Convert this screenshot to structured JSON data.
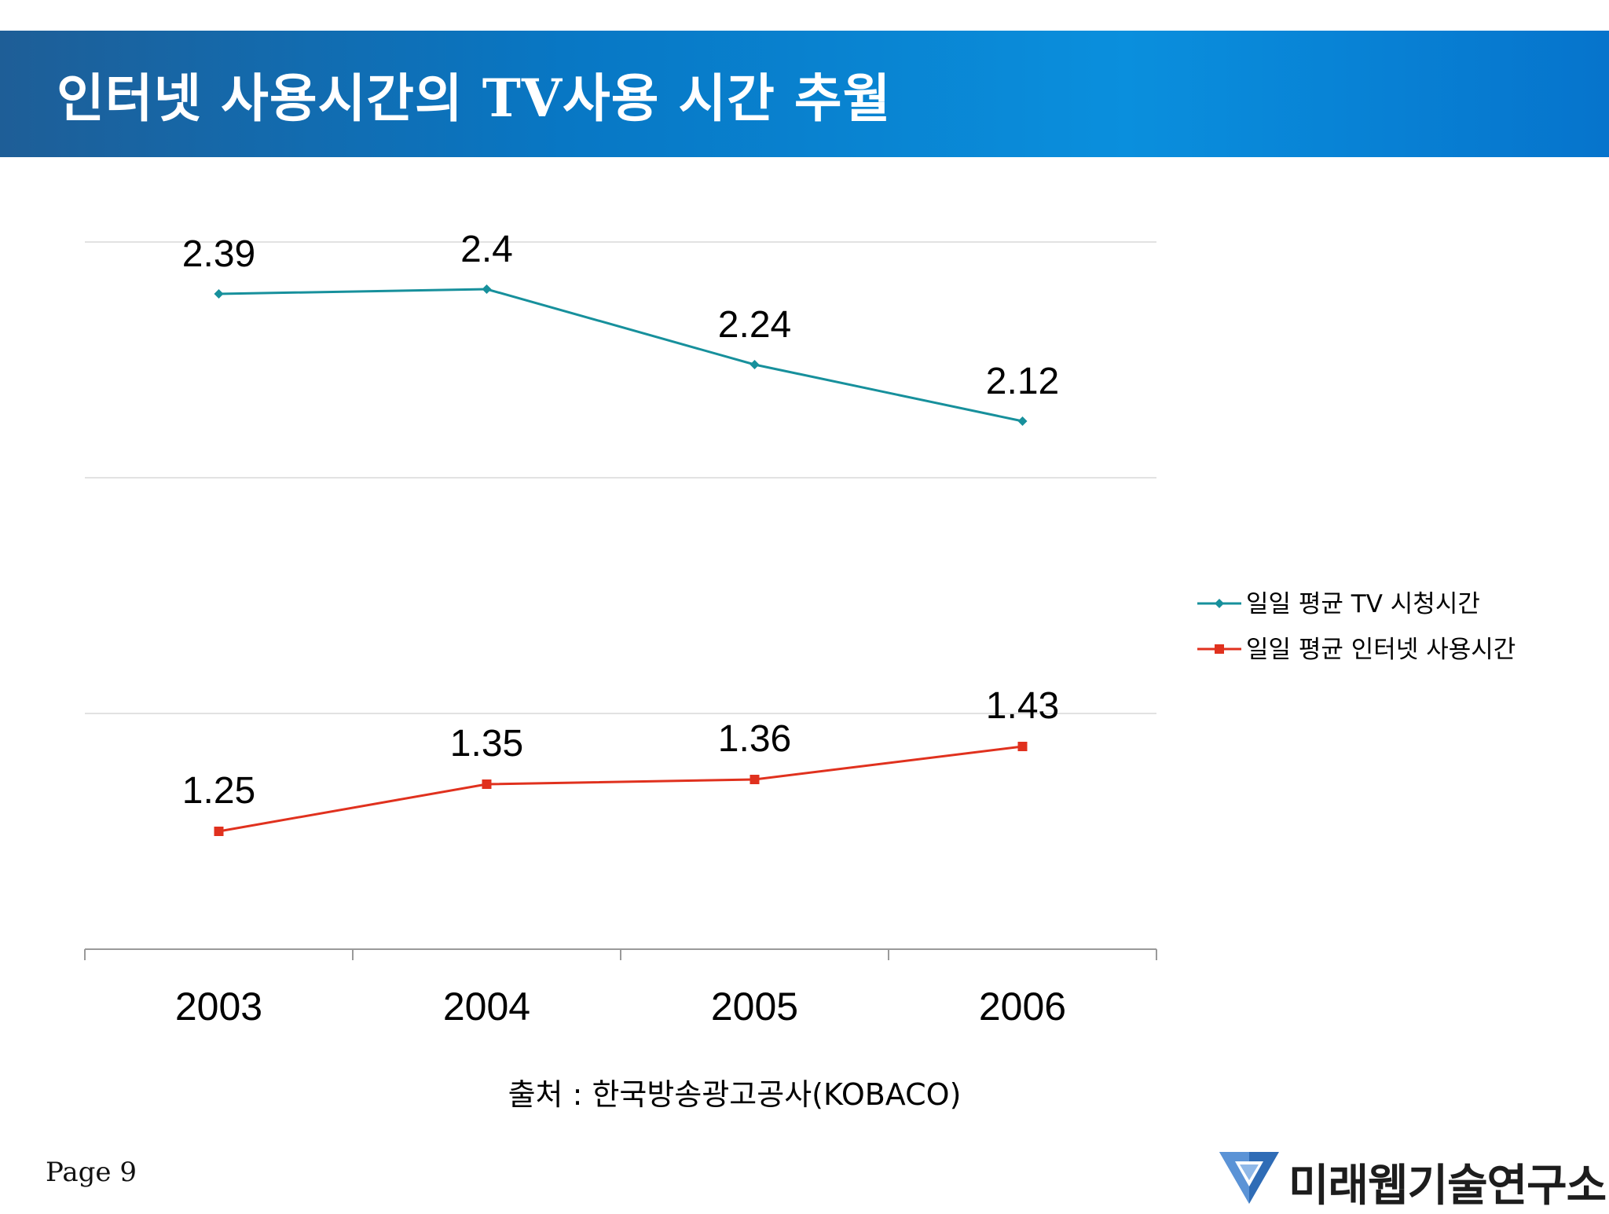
{
  "slide": {
    "title": "인터넷 사용시간의 TV사용 시간 추월",
    "source": "출처 : 한국방송광고공사(KOBACO)",
    "page": "Page 9",
    "logo_text": "미래웹기술연구소",
    "logo_icon": "triangle-logo-icon"
  },
  "colors": {
    "header": "#0a83d6",
    "tv_series": "#17909c",
    "internet_series": "#e0311e",
    "gridline": "#d9d9d9",
    "axis": "#9a9a9a"
  },
  "chart_data": {
    "type": "line",
    "title": "",
    "xlabel": "",
    "ylabel": "",
    "categories": [
      "2003",
      "2004",
      "2005",
      "2006"
    ],
    "ylim": [
      1.0,
      2.5
    ],
    "gridlines": [
      1.5,
      2.0,
      2.5
    ],
    "legend_position": "right",
    "series": [
      {
        "name": "일일 평균 TV 시청시간",
        "marker": "diamond",
        "values": [
          2.39,
          2.4,
          2.24,
          2.12
        ],
        "labels": [
          "2.39",
          "2.4",
          "2.24",
          "2.12"
        ]
      },
      {
        "name": "일일 평균 인터넷 사용시간",
        "marker": "square",
        "values": [
          1.25,
          1.35,
          1.36,
          1.43
        ],
        "labels": [
          "1.25",
          "1.35",
          "1.36",
          "1.43"
        ]
      }
    ]
  }
}
